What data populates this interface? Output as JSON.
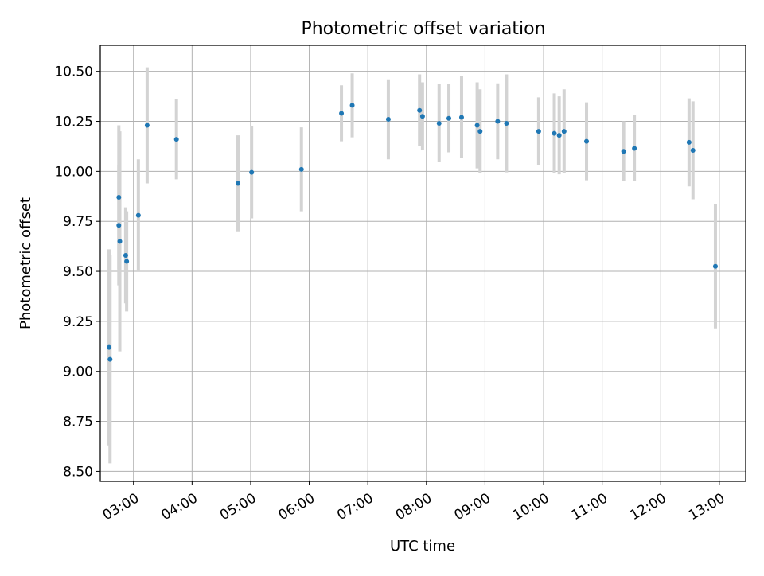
{
  "chart_data": {
    "type": "scatter",
    "title": "Photometric offset variation",
    "xlabel": "UTC time",
    "ylabel": "Photometric offset",
    "x_ticks": [
      "03:00",
      "04:00",
      "05:00",
      "06:00",
      "07:00",
      "08:00",
      "09:00",
      "10:00",
      "11:00",
      "12:00",
      "13:00"
    ],
    "y_ticks": [
      "8.50",
      "8.75",
      "9.00",
      "9.25",
      "9.50",
      "9.75",
      "10.00",
      "10.25",
      "10.50"
    ],
    "xlim": [
      "02:26",
      "13:27"
    ],
    "ylim": [
      8.45,
      10.63
    ],
    "grid": true,
    "colors": {
      "point": "#1f77b4",
      "errorbar": "#d3d3d3",
      "grid": "#b0b0b0"
    },
    "points": [
      {
        "x": "02:35",
        "y": 9.12,
        "yerr": 0.49
      },
      {
        "x": "02:36",
        "y": 9.06,
        "yerr": 0.52
      },
      {
        "x": "02:45",
        "y": 9.87,
        "yerr": 0.36
      },
      {
        "x": "02:45",
        "y": 9.73,
        "yerr": 0.3
      },
      {
        "x": "02:46",
        "y": 9.65,
        "yerr": 0.55
      },
      {
        "x": "02:52",
        "y": 9.58,
        "yerr": 0.24
      },
      {
        "x": "02:53",
        "y": 9.55,
        "yerr": 0.25
      },
      {
        "x": "03:05",
        "y": 9.78,
        "yerr": 0.28
      },
      {
        "x": "03:14",
        "y": 10.23,
        "yerr": 0.29
      },
      {
        "x": "03:44",
        "y": 10.16,
        "yerr": 0.2
      },
      {
        "x": "04:47",
        "y": 9.94,
        "yerr": 0.24
      },
      {
        "x": "05:01",
        "y": 9.995,
        "yerr": 0.23
      },
      {
        "x": "05:52",
        "y": 10.01,
        "yerr": 0.21
      },
      {
        "x": "06:33",
        "y": 10.29,
        "yerr": 0.14
      },
      {
        "x": "06:44",
        "y": 10.33,
        "yerr": 0.16
      },
      {
        "x": "07:21",
        "y": 10.26,
        "yerr": 0.2
      },
      {
        "x": "07:53",
        "y": 10.305,
        "yerr": 0.18
      },
      {
        "x": "07:56",
        "y": 10.275,
        "yerr": 0.17
      },
      {
        "x": "08:13",
        "y": 10.24,
        "yerr": 0.195
      },
      {
        "x": "08:23",
        "y": 10.265,
        "yerr": 0.17
      },
      {
        "x": "08:36",
        "y": 10.27,
        "yerr": 0.205
      },
      {
        "x": "08:52",
        "y": 10.23,
        "yerr": 0.215
      },
      {
        "x": "08:55",
        "y": 10.2,
        "yerr": 0.21
      },
      {
        "x": "09:13",
        "y": 10.25,
        "yerr": 0.19
      },
      {
        "x": "09:22",
        "y": 10.24,
        "yerr": 0.245
      },
      {
        "x": "09:55",
        "y": 10.2,
        "yerr": 0.17
      },
      {
        "x": "10:11",
        "y": 10.19,
        "yerr": 0.2
      },
      {
        "x": "10:16",
        "y": 10.18,
        "yerr": 0.195
      },
      {
        "x": "10:21",
        "y": 10.2,
        "yerr": 0.21
      },
      {
        "x": "10:44",
        "y": 10.15,
        "yerr": 0.195
      },
      {
        "x": "11:22",
        "y": 10.1,
        "yerr": 0.15
      },
      {
        "x": "11:33",
        "y": 10.115,
        "yerr": 0.165
      },
      {
        "x": "12:29",
        "y": 10.145,
        "yerr": 0.22
      },
      {
        "x": "12:33",
        "y": 10.105,
        "yerr": 0.245
      },
      {
        "x": "12:56",
        "y": 9.525,
        "yerr": 0.31
      }
    ]
  }
}
